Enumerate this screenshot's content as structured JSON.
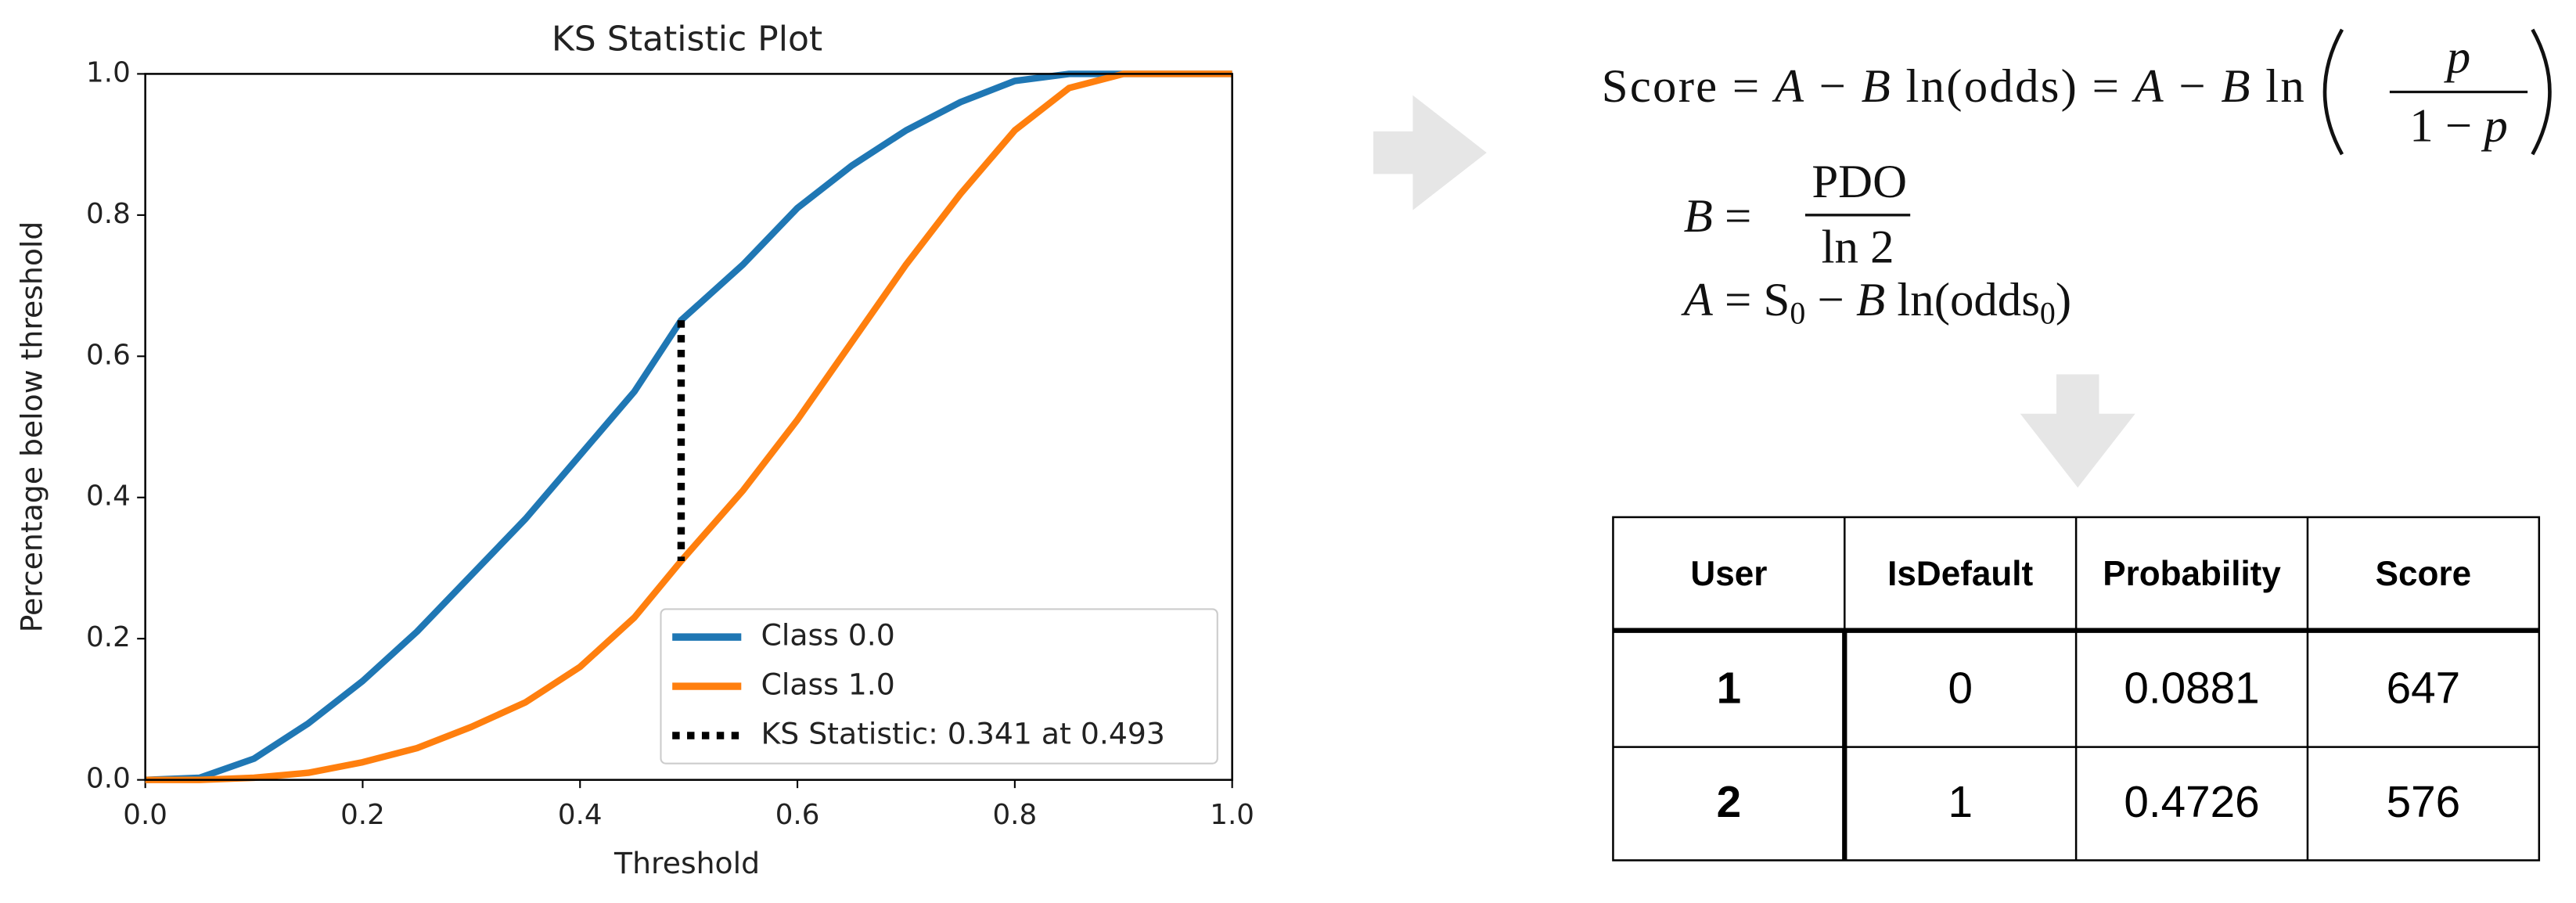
{
  "chart_data": {
    "type": "line",
    "title": "KS Statistic Plot",
    "x_label": "Threshold",
    "y_label": "Percentage below threshold",
    "x": [
      0,
      0.05,
      0.1,
      0.15,
      0.2,
      0.25,
      0.3,
      0.35,
      0.4,
      0.45,
      0.493,
      0.55,
      0.6,
      0.65,
      0.7,
      0.75,
      0.8,
      0.85,
      0.9,
      0.95,
      1.0
    ],
    "series": [
      {
        "name": "Class 0.0",
        "color": "#1f77b4",
        "values": [
          0,
          0.003,
          0.03,
          0.08,
          0.14,
          0.21,
          0.29,
          0.37,
          0.46,
          0.55,
          0.651,
          0.73,
          0.81,
          0.87,
          0.92,
          0.96,
          0.99,
          1.0,
          1.0,
          1.0,
          1.0
        ]
      },
      {
        "name": "Class 1.0",
        "color": "#ff7f0e",
        "values": [
          0,
          0,
          0.003,
          0.01,
          0.025,
          0.045,
          0.075,
          0.11,
          0.16,
          0.23,
          0.31,
          0.41,
          0.51,
          0.62,
          0.73,
          0.83,
          0.92,
          0.98,
          1.0,
          1.0,
          1.0
        ]
      }
    ],
    "ks_label": "KS Statistic: 0.341 at 0.493",
    "ks_color": "#000000",
    "xlim": [
      0,
      1.0
    ],
    "ylim": [
      0,
      1.0
    ],
    "xticks": [
      {
        "value": 0,
        "label": "0.0"
      },
      0.2,
      0.4,
      0.6,
      0.8,
      {
        "value": 1,
        "label": "1.0"
      }
    ],
    "yticks": [
      {
        "value": 0,
        "label": "0.0"
      },
      0.2,
      0.4,
      0.6,
      0.8,
      {
        "value": 1,
        "label": "1.0"
      }
    ],
    "legend": "lower right",
    "grid": false
  },
  "formulas": {
    "score": {
      "lhs": "Score = ",
      "a1": "A",
      "m1": " − ",
      "b1": "B",
      "ln1": " ln(odds) = ",
      "a2": "A",
      "m2": " − ",
      "b2": "B",
      "ln2": " ln",
      "num": "p",
      "den1": "1 − ",
      "den2": "p"
    },
    "b": {
      "lhs": "B",
      "eq": " = ",
      "num": "PDO",
      "den": "ln 2"
    },
    "a": {
      "lhs": "A",
      "eq": " = S",
      "sub1": "0",
      "m": " − ",
      "b": "B",
      "ln": " ln(odds",
      "sub2": "0",
      "close": ")"
    }
  },
  "table": {
    "header": [
      "User",
      "IsDefault",
      "Probability",
      "Score"
    ],
    "rows": [
      [
        1,
        0,
        0.0881,
        647
      ],
      [
        2,
        1,
        0.4726,
        576
      ]
    ]
  }
}
